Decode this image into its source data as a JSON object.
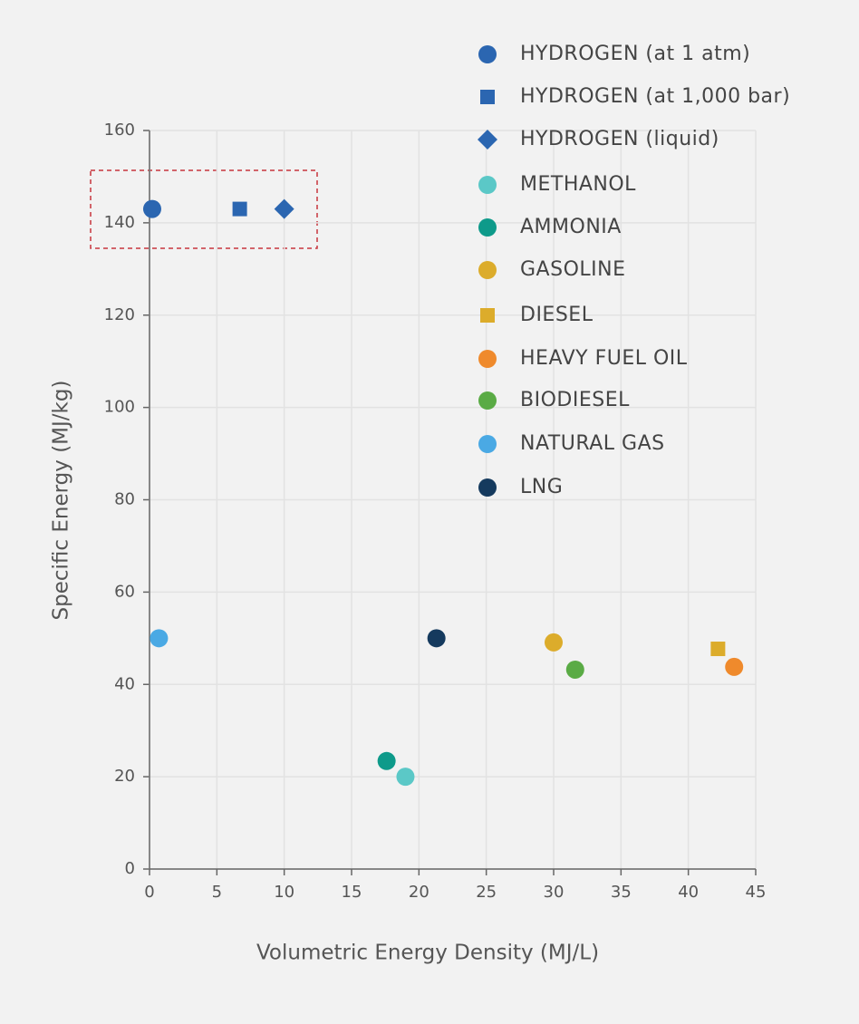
{
  "chart_data": {
    "type": "scatter",
    "x_label": "Volumetric Energy Density (MJ/L)",
    "y_label": "Specific Energy (MJ/kg)",
    "xlim": [
      0,
      45
    ],
    "xticks": [
      0,
      5,
      10,
      15,
      20,
      25,
      30,
      35,
      40,
      45
    ],
    "ylim": [
      0,
      160
    ],
    "yticks": [
      0,
      20,
      40,
      60,
      80,
      100,
      120,
      140,
      160
    ],
    "grid": true,
    "legend": "top-right",
    "series": [
      {
        "name": "HYDROGEN (at 1 atm)",
        "color": "#2b66b1",
        "marker": "circle",
        "x": [
          0.2
        ],
        "values": [
          143
        ]
      },
      {
        "name": "HYDROGEN (at 1,000 bar)",
        "color": "#2b66b1",
        "marker": "square",
        "x": [
          6.7
        ],
        "values": [
          143
        ]
      },
      {
        "name": "HYDROGEN (liquid)",
        "color": "#2b66b1",
        "marker": "diamond",
        "x": [
          10
        ],
        "values": [
          143
        ]
      },
      {
        "name": "METHANOL",
        "color": "#5bc8c7",
        "marker": "circle",
        "x": [
          19
        ],
        "values": [
          20
        ]
      },
      {
        "name": "AMMONIA",
        "color": "#0e9a8a",
        "marker": "circle",
        "x": [
          17.6
        ],
        "values": [
          23.4
        ]
      },
      {
        "name": "GASOLINE",
        "color": "#dcac2b",
        "marker": "circle",
        "x": [
          30
        ],
        "values": [
          49.1
        ]
      },
      {
        "name": "DIESEL",
        "color": "#dcac2b",
        "marker": "square",
        "x": [
          42.2
        ],
        "values": [
          47.7
        ]
      },
      {
        "name": "HEAVY FUEL OIL",
        "color": "#ef8a2c",
        "marker": "circle",
        "x": [
          43.4
        ],
        "values": [
          43.8
        ]
      },
      {
        "name": "BIODIESEL",
        "color": "#5aab45",
        "marker": "circle",
        "x": [
          31.6
        ],
        "values": [
          43.2
        ]
      },
      {
        "name": "NATURAL GAS",
        "color": "#4aa9e4",
        "marker": "circle",
        "x": [
          0.7
        ],
        "values": [
          50
        ]
      },
      {
        "name": "LNG",
        "color": "#153a5e",
        "marker": "circle",
        "x": [
          21.3
        ],
        "values": [
          50
        ]
      }
    ]
  }
}
